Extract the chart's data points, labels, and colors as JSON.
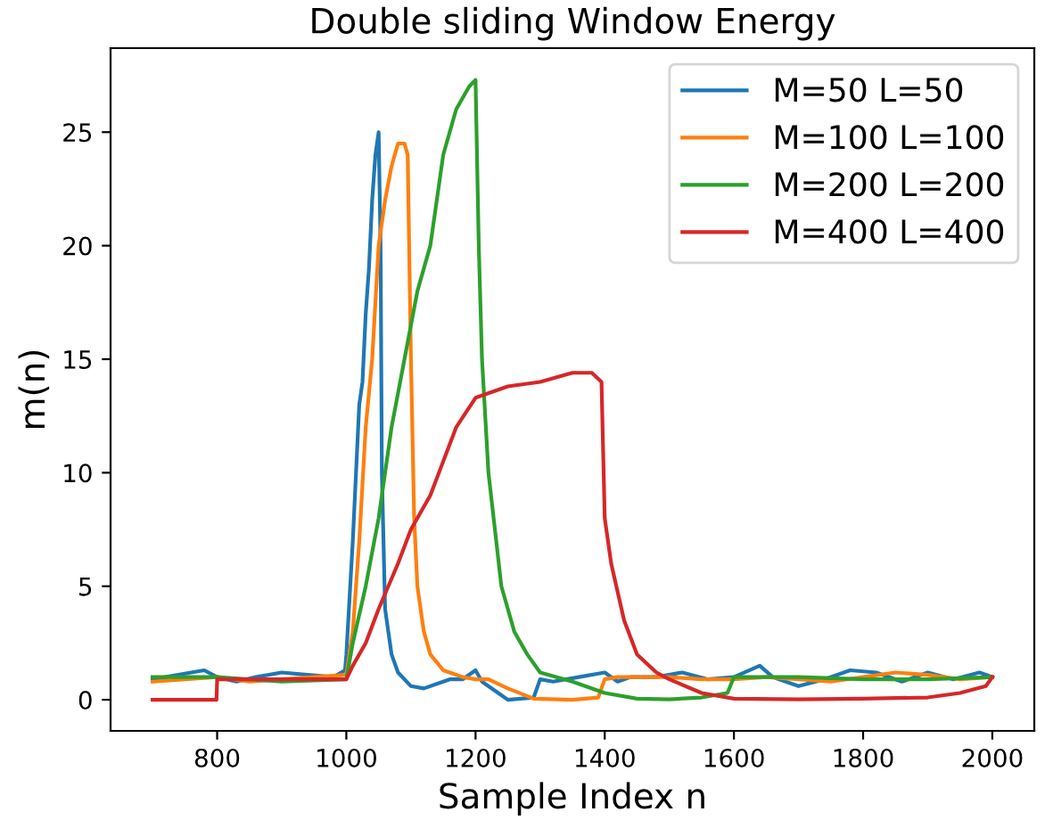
{
  "chart_data": {
    "type": "line",
    "title": "Double sliding Window Energy",
    "xlabel": "Sample Index n",
    "ylabel": "m(n)",
    "xlim": [
      635,
      2065
    ],
    "ylim": [
      -1.37,
      28.7
    ],
    "xticks": [
      800,
      1000,
      1200,
      1400,
      1600,
      1800,
      2000
    ],
    "yticks": [
      0,
      5,
      10,
      15,
      20,
      25
    ],
    "legend": "top right",
    "grid": false,
    "series": [
      {
        "name": "M=50 L=50",
        "color": "#1f77b4",
        "x": [
          700,
          720,
          760,
          780,
          800,
          830,
          860,
          900,
          940,
          980,
          998,
          1000,
          1010,
          1015,
          1020,
          1025,
          1030,
          1035,
          1040,
          1045,
          1050,
          1053,
          1055,
          1060,
          1070,
          1080,
          1100,
          1120,
          1140,
          1160,
          1180,
          1200,
          1210,
          1240,
          1250,
          1290,
          1300,
          1320,
          1360,
          1400,
          1420,
          1440,
          1480,
          1520,
          1560,
          1600,
          1640,
          1660,
          1700,
          1740,
          1780,
          1820,
          1860,
          1900,
          1940,
          1980,
          2000
        ],
        "values": [
          0.9,
          1.0,
          1.2,
          1.3,
          1.0,
          0.8,
          1.0,
          1.2,
          1.1,
          1.0,
          1.3,
          2,
          7,
          10,
          13,
          14,
          17,
          19,
          22,
          24,
          25,
          20,
          10,
          4,
          2,
          1.2,
          0.6,
          0.5,
          0.7,
          0.9,
          0.9,
          1.3,
          0.8,
          0.2,
          0,
          0.1,
          0.9,
          0.8,
          1.0,
          1.2,
          0.8,
          1.0,
          1.0,
          1.2,
          0.9,
          1.0,
          1.5,
          1.0,
          0.6,
          0.9,
          1.3,
          1.2,
          0.8,
          1.2,
          0.9,
          1.2,
          1.0
        ]
      },
      {
        "name": "M=100 L=100",
        "color": "#ff7f0e",
        "x": [
          700,
          800,
          850,
          900,
          950,
          1000,
          1010,
          1020,
          1030,
          1040,
          1050,
          1060,
          1070,
          1080,
          1090,
          1095,
          1100,
          1105,
          1110,
          1120,
          1130,
          1150,
          1180,
          1200,
          1220,
          1250,
          1290,
          1350,
          1390,
          1400,
          1420,
          1460,
          1500,
          1550,
          1600,
          1650,
          1700,
          1750,
          1800,
          1850,
          1900,
          1950,
          2000
        ],
        "values": [
          0.8,
          1.0,
          0.8,
          0.9,
          1.0,
          1.1,
          3,
          7,
          12,
          15,
          20,
          22,
          23.5,
          24.5,
          24.5,
          24,
          15,
          8,
          5,
          3,
          2,
          1.3,
          1.0,
          0.9,
          0.9,
          0.5,
          0.05,
          0.0,
          0.1,
          0.9,
          1.0,
          1.0,
          1.0,
          0.9,
          0.9,
          1.0,
          0.9,
          0.8,
          1.0,
          1.2,
          1.1,
          0.9,
          1.0
        ]
      },
      {
        "name": "M=200 L=200",
        "color": "#2ca02c",
        "x": [
          700,
          800,
          900,
          1000,
          1010,
          1030,
          1050,
          1070,
          1090,
          1110,
          1130,
          1150,
          1170,
          1190,
          1200,
          1205,
          1210,
          1220,
          1240,
          1260,
          1280,
          1300,
          1350,
          1400,
          1450,
          1500,
          1550,
          1590,
          1600,
          1650,
          1700,
          1800,
          1900,
          2000
        ],
        "values": [
          1.0,
          1.0,
          0.8,
          0.9,
          2.5,
          5,
          8,
          12,
          15,
          18,
          20,
          24,
          26,
          27,
          27.3,
          20,
          15,
          10,
          5,
          3,
          2,
          1.2,
          0.8,
          0.3,
          0.05,
          0.02,
          0.1,
          0.3,
          1.0,
          1.0,
          1.0,
          0.9,
          0.9,
          1.0
        ]
      },
      {
        "name": "M=400 L=400",
        "color": "#d62728",
        "x": [
          700,
          799,
          800,
          900,
          1000,
          1010,
          1030,
          1050,
          1080,
          1100,
          1130,
          1150,
          1170,
          1200,
          1250,
          1300,
          1350,
          1380,
          1395,
          1400,
          1410,
          1430,
          1450,
          1480,
          1500,
          1550,
          1600,
          1700,
          1800,
          1900,
          1950,
          1990,
          2000
        ],
        "values": [
          0,
          0,
          0.9,
          0.9,
          0.9,
          1.5,
          2.5,
          4,
          6,
          7.5,
          9,
          10.5,
          12,
          13.3,
          13.8,
          14,
          14.4,
          14.4,
          14,
          8,
          6,
          3.5,
          2,
          1.2,
          0.9,
          0.3,
          0.05,
          0.02,
          0.05,
          0.1,
          0.3,
          0.6,
          1.0
        ]
      }
    ]
  }
}
